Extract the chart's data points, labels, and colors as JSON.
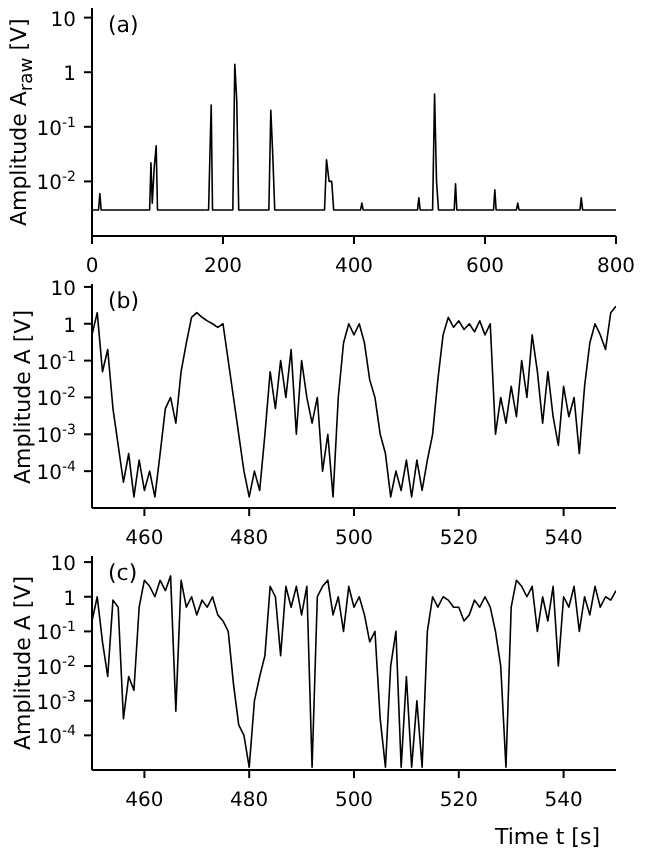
{
  "chart_data": [
    {
      "type": "line",
      "ylabel": "Amplitude A$_{raw}$ [V]",
      "annotations": [
        "(a)"
      ],
      "log": "y",
      "xlim": [
        0,
        800
      ],
      "xticks": [
        0,
        200,
        400,
        600,
        800
      ],
      "ylim": [
        0.001,
        15
      ],
      "yticks": [
        {
          "value": 0.01,
          "label": "10$^{-2}$"
        },
        {
          "value": 0.1,
          "label": "10$^{-1}$"
        },
        {
          "value": 1,
          "label": "1"
        },
        {
          "value": 10,
          "label": "10"
        }
      ],
      "x": [
        0,
        10,
        12,
        14,
        88,
        90,
        92,
        95,
        98,
        100,
        178,
        180,
        182,
        184,
        215,
        218,
        221,
        224,
        270,
        273,
        276,
        279,
        355,
        358,
        362,
        366,
        369,
        410,
        412,
        414,
        497,
        499,
        501,
        520,
        523,
        526,
        529,
        553,
        555,
        557,
        613,
        615,
        617,
        648,
        650,
        652,
        745,
        747,
        749,
        800
      ],
      "series": [
        {
          "color": "#000000",
          "values": [
            0.003,
            0.003,
            0.006,
            0.003,
            0.003,
            0.022,
            0.004,
            0.018,
            0.045,
            0.003,
            0.003,
            0.03,
            0.25,
            0.003,
            0.003,
            1.4,
            0.3,
            0.003,
            0.003,
            0.2,
            0.03,
            0.003,
            0.003,
            0.025,
            0.01,
            0.01,
            0.003,
            0.003,
            0.004,
            0.003,
            0.003,
            0.005,
            0.003,
            0.003,
            0.4,
            0.01,
            0.003,
            0.003,
            0.009,
            0.003,
            0.003,
            0.007,
            0.003,
            0.003,
            0.004,
            0.003,
            0.003,
            0.005,
            0.003,
            0.003
          ]
        }
      ]
    },
    {
      "type": "line",
      "ylabel": "Amplitude A [V]",
      "annotations": [
        "(b)"
      ],
      "log": "y",
      "xlim": [
        450,
        550
      ],
      "xticks": [
        460,
        480,
        500,
        520,
        540
      ],
      "ylim": [
        1e-05,
        12
      ],
      "yticks": [
        {
          "value": 0.0001,
          "label": "10$^{-4}$"
        },
        {
          "value": 0.001,
          "label": "10$^{-3}$"
        },
        {
          "value": 0.01,
          "label": "10$^{-2}$"
        },
        {
          "value": 0.1,
          "label": "10$^{-1}$"
        },
        {
          "value": 1,
          "label": "1"
        },
        {
          "value": 10,
          "label": "10"
        }
      ],
      "x": [
        450,
        451,
        452,
        453,
        454,
        455,
        456,
        457,
        458,
        459,
        460,
        461,
        462,
        463,
        464,
        465,
        466,
        467,
        468,
        469,
        470,
        471,
        472,
        473,
        474,
        475,
        476,
        477,
        478,
        479,
        480,
        481,
        482,
        483,
        484,
        485,
        486,
        487,
        488,
        489,
        490,
        491,
        492,
        493,
        494,
        495,
        496,
        497,
        498,
        499,
        500,
        501,
        502,
        503,
        504,
        505,
        506,
        507,
        508,
        509,
        510,
        511,
        512,
        513,
        514,
        515,
        516,
        517,
        518,
        519,
        520,
        521,
        522,
        523,
        524,
        525,
        526,
        527,
        528,
        529,
        530,
        531,
        532,
        533,
        534,
        535,
        536,
        537,
        538,
        539,
        540,
        541,
        542,
        543,
        544,
        545,
        546,
        547,
        548,
        549,
        550
      ],
      "series": [
        {
          "color": "#000000",
          "values": [
            0.5,
            2,
            0.05,
            0.2,
            0.005,
            0.0005,
            5e-05,
            0.0003,
            2e-05,
            0.0002,
            3e-05,
            0.0001,
            2e-05,
            0.0003,
            0.005,
            0.01,
            0.002,
            0.05,
            0.3,
            1.5,
            2,
            1.5,
            1.2,
            1,
            0.8,
            1,
            0.1,
            0.01,
            0.001,
            0.0001,
            2e-05,
            0.0001,
            3e-05,
            0.001,
            0.05,
            0.005,
            0.1,
            0.01,
            0.2,
            0.001,
            0.1,
            0.01,
            0.002,
            0.01,
            0.0001,
            0.001,
            2e-05,
            0.01,
            0.3,
            1,
            0.5,
            1,
            0.3,
            0.03,
            0.01,
            0.001,
            0.0003,
            2e-05,
            0.0001,
            3e-05,
            0.0002,
            2e-05,
            0.0002,
            3e-05,
            0.0002,
            0.001,
            0.03,
            0.5,
            1.5,
            0.8,
            1.2,
            0.7,
            1,
            0.6,
            1.2,
            0.5,
            1,
            0.001,
            0.01,
            0.002,
            0.02,
            0.003,
            0.1,
            0.01,
            0.5,
            0.05,
            0.002,
            0.05,
            0.003,
            0.0005,
            0.02,
            0.003,
            0.01,
            0.0003,
            0.02,
            0.3,
            1,
            0.5,
            0.2,
            2,
            3
          ]
        }
      ]
    },
    {
      "type": "line",
      "xlabel": "Time t [s]",
      "ylabel": "Amplitude A [V]",
      "annotations": [
        "(c)"
      ],
      "log": "y",
      "xlim": [
        450,
        550
      ],
      "xticks": [
        460,
        480,
        500,
        520,
        540
      ],
      "ylim": [
        1e-05,
        15
      ],
      "yticks": [
        {
          "value": 0.0001,
          "label": "10$^{-4}$"
        },
        {
          "value": 0.001,
          "label": "10$^{-3}$"
        },
        {
          "value": 0.01,
          "label": "10$^{-2}$"
        },
        {
          "value": 0.1,
          "label": "10$^{-1}$"
        },
        {
          "value": 1,
          "label": "1"
        },
        {
          "value": 10,
          "label": "10"
        }
      ],
      "x": [
        450,
        451,
        452,
        453,
        454,
        455,
        456,
        457,
        458,
        459,
        460,
        461,
        462,
        463,
        464,
        465,
        466,
        467,
        468,
        469,
        470,
        471,
        472,
        473,
        474,
        475,
        476,
        477,
        478,
        479,
        480,
        481,
        482,
        483,
        484,
        485,
        486,
        487,
        488,
        489,
        490,
        491,
        492,
        493,
        494,
        495,
        496,
        497,
        498,
        499,
        500,
        501,
        502,
        503,
        504,
        505,
        506,
        507,
        508,
        509,
        510,
        511,
        512,
        513,
        514,
        515,
        516,
        517,
        518,
        519,
        520,
        521,
        522,
        523,
        524,
        525,
        526,
        527,
        528,
        529,
        530,
        531,
        532,
        533,
        534,
        535,
        536,
        537,
        538,
        539,
        540,
        541,
        542,
        543,
        544,
        545,
        546,
        547,
        548,
        549,
        550
      ],
      "series": [
        {
          "color": "#000000",
          "values": [
            0.2,
            1,
            0.05,
            0.005,
            0.8,
            0.5,
            0.0003,
            0.005,
            0.002,
            0.5,
            3,
            2,
            1,
            3,
            1.5,
            4,
            0.0005,
            3,
            0.5,
            1,
            0.3,
            0.8,
            0.5,
            1,
            0.3,
            0.2,
            0.1,
            0.003,
            0.0002,
            0.0001,
            1.2e-05,
            0.001,
            0.005,
            0.02,
            2,
            1,
            0.02,
            2,
            0.5,
            2,
            0.3,
            2,
            1.2e-05,
            1,
            2,
            3,
            0.3,
            1,
            0.1,
            2,
            0.5,
            1,
            0.3,
            0.05,
            0.1,
            0.0003,
            1.2e-05,
            0.01,
            0.1,
            1.2e-05,
            0.005,
            1.2e-05,
            0.001,
            1.2e-05,
            0.1,
            1,
            0.5,
            1,
            0.8,
            0.5,
            0.5,
            0.2,
            0.3,
            0.8,
            0.5,
            1,
            0.5,
            0.1,
            0.01,
            1.2e-05,
            0.5,
            3,
            2,
            1,
            2,
            0.1,
            1,
            0.2,
            2,
            0.01,
            1,
            0.5,
            2,
            0.1,
            1,
            0.3,
            2,
            0.5,
            1,
            0.8,
            1.5
          ]
        }
      ]
    }
  ]
}
